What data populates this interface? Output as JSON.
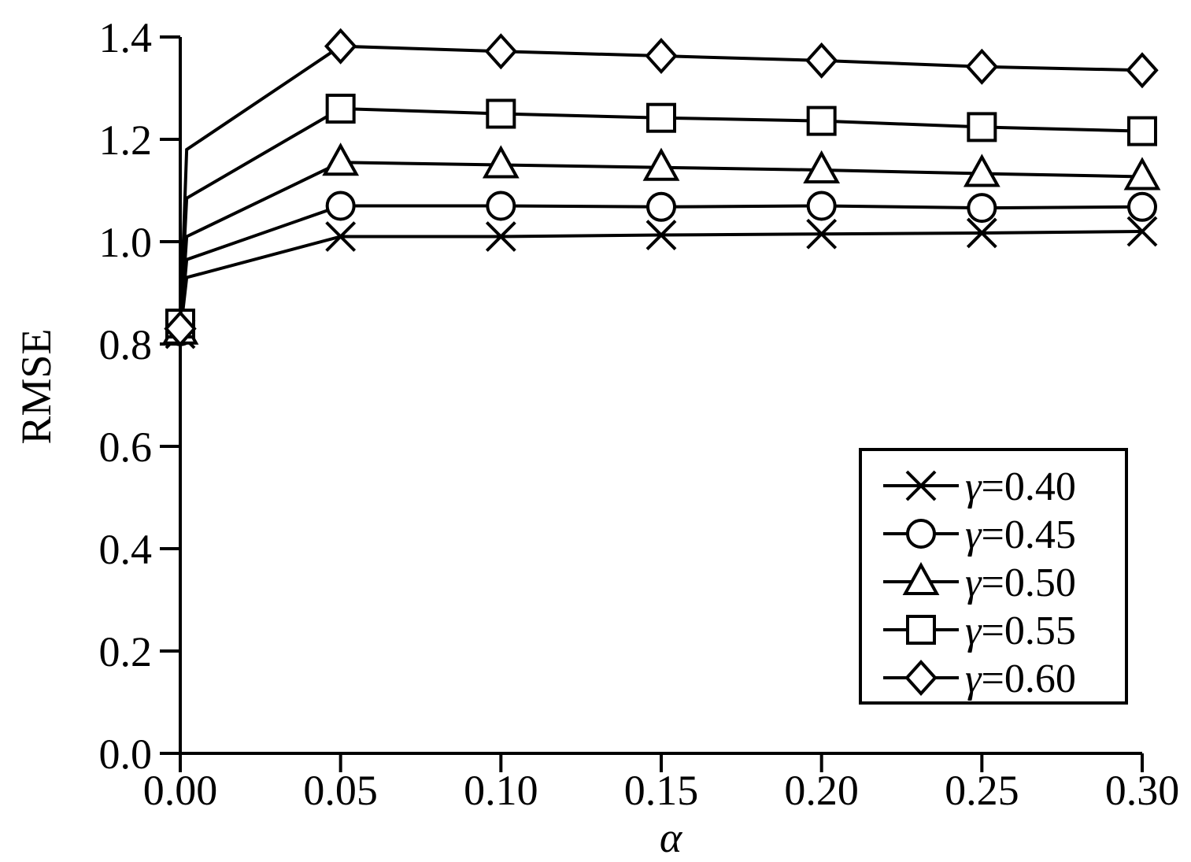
{
  "chart_data": {
    "type": "line",
    "title": "",
    "xlabel": "α",
    "ylabel": "RMSE",
    "x": [
      0.0,
      0.002,
      0.05,
      0.1,
      0.15,
      0.2,
      0.25,
      0.3
    ],
    "x_ticks": [
      "0.00",
      "0.05",
      "0.10",
      "0.15",
      "0.20",
      "0.25",
      "0.30"
    ],
    "y_ticks": [
      "0.0",
      "0.2",
      "0.4",
      "0.6",
      "0.8",
      "1.0",
      "1.2",
      "1.4"
    ],
    "xlim": [
      0.0,
      0.3
    ],
    "ylim": [
      0.0,
      1.4
    ],
    "grid": false,
    "legend_position": "bottom-right",
    "legend_symbol": "γ",
    "series": [
      {
        "name": "γ=0.40",
        "label_value": "=0.40",
        "marker": "x",
        "values": [
          0.82,
          0.93,
          1.01,
          1.01,
          1.013,
          1.015,
          1.017,
          1.02
        ]
      },
      {
        "name": "γ=0.45",
        "label_value": "=0.45",
        "marker": "circle",
        "values": [
          0.825,
          0.965,
          1.07,
          1.07,
          1.068,
          1.07,
          1.066,
          1.068
        ]
      },
      {
        "name": "γ=0.50",
        "label_value": "=0.50",
        "marker": "triangle",
        "values": [
          0.825,
          1.01,
          1.155,
          1.15,
          1.145,
          1.14,
          1.133,
          1.127
        ]
      },
      {
        "name": "γ=0.55",
        "label_value": "=0.55",
        "marker": "square",
        "values": [
          0.84,
          1.085,
          1.26,
          1.25,
          1.242,
          1.236,
          1.224,
          1.216
        ]
      },
      {
        "name": "γ=0.60",
        "label_value": "=0.60",
        "marker": "diamond",
        "values": [
          0.83,
          1.18,
          1.382,
          1.372,
          1.363,
          1.354,
          1.342,
          1.335
        ]
      }
    ]
  }
}
